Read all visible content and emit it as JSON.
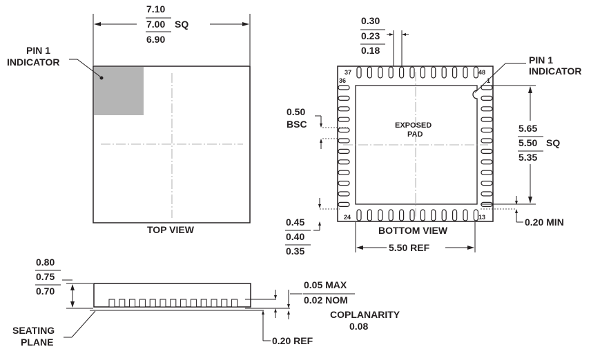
{
  "top_view": {
    "dim_upper": "7.10",
    "dim_nominal": "7.00",
    "dim_suffix": "SQ",
    "dim_lower": "6.90",
    "pin1_line1": "PIN 1",
    "pin1_line2": "INDICATOR",
    "caption": "TOP VIEW"
  },
  "bottom_view": {
    "lead_width_upper": "0.30",
    "lead_width_nominal": "0.23",
    "lead_width_lower": "0.18",
    "pin1_line1": "PIN 1",
    "pin1_line2": "INDICATOR",
    "pitch_value": "0.50",
    "pitch_suffix": "BSC",
    "pad_line1": "EXPOSED",
    "pad_line2": "PAD",
    "pad_dim_upper": "5.65",
    "pad_dim_nominal": "5.50",
    "pad_dim_suffix": "SQ",
    "pad_dim_lower": "5.35",
    "lead_len_upper": "0.45",
    "lead_len_nominal": "0.40",
    "lead_len_lower": "0.35",
    "caption": "BOTTOM VIEW",
    "span_dim": "5.50 REF",
    "min_dim": "0.20 MIN",
    "pin_37": "37",
    "pin_48": "48",
    "pin_36": "36",
    "pin_1": "1",
    "pin_24": "24",
    "pin_13": "13"
  },
  "side_view": {
    "height_upper": "0.80",
    "height_nominal": "0.75",
    "height_lower": "0.70",
    "standoff_max": "0.05 MAX",
    "standoff_nom": "0.02 NOM",
    "coplanarity_label": "COPLANARITY",
    "coplanarity_value": "0.08",
    "ref_dim": "0.20 REF",
    "seating_line1": "SEATING",
    "seating_line2": "PLANE"
  }
}
